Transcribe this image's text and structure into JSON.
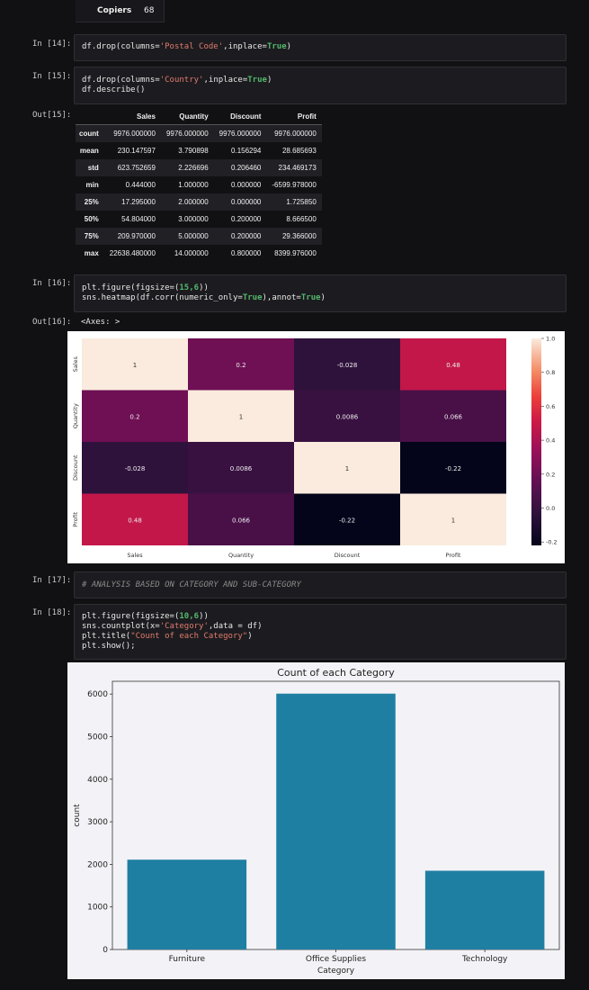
{
  "top_row": {
    "label": "Copiers",
    "value": "68"
  },
  "cells": {
    "c14": {
      "prompt": "In [14]:",
      "line1_a": "df.drop(columns=",
      "line1_s": "'Postal Code'",
      "line1_b": ",inplace=",
      "line1_k": "True",
      "line1_c": ")"
    },
    "c15": {
      "prompt": "In [15]:",
      "line1_a": "df.drop(columns=",
      "line1_s": "'Country'",
      "line1_b": ",inplace=",
      "line1_k": "True",
      "line1_c": ")",
      "line2": "df.describe()"
    },
    "out15": {
      "prompt": "Out[15]:"
    },
    "c16": {
      "prompt": "In [16]:",
      "line1_a": "plt.figure(figsize=(",
      "line1_n": "15,6",
      "line1_b": "))",
      "line2_a": "sns.heatmap(df.corr(numeric_only=",
      "line2_k1": "True",
      "line2_b": "),annot=",
      "line2_k2": "True",
      "line2_c": ")"
    },
    "out16": {
      "prompt": "Out[16]:",
      "text": "<Axes: >"
    },
    "c17": {
      "prompt": "In [17]:",
      "comment": "# ANALYSIS BASED ON CATEGORY AND SUB-CATEGORY"
    },
    "c18": {
      "prompt": "In [18]:",
      "l1_a": "plt.figure(figsize=(",
      "l1_n": "10,6",
      "l1_b": "))",
      "l2_a": "sns.countplot(x=",
      "l2_s": "'Category'",
      "l2_b": ",data = df)",
      "l3_a": "plt.title(",
      "l3_s": "\"Count of each Category\"",
      "l3_b": ")",
      "l4": "plt.show();"
    }
  },
  "describe": {
    "columns": [
      "Sales",
      "Quantity",
      "Discount",
      "Profit"
    ],
    "rows": [
      {
        "label": "count",
        "values": [
          "9976.000000",
          "9976.000000",
          "9976.000000",
          "9976.000000"
        ]
      },
      {
        "label": "mean",
        "values": [
          "230.147597",
          "3.790898",
          "0.156294",
          "28.685693"
        ]
      },
      {
        "label": "std",
        "values": [
          "623.752659",
          "2.226696",
          "0.206460",
          "234.469173"
        ]
      },
      {
        "label": "min",
        "values": [
          "0.444000",
          "1.000000",
          "0.000000",
          "-6599.978000"
        ]
      },
      {
        "label": "25%",
        "values": [
          "17.295000",
          "2.000000",
          "0.000000",
          "1.725850"
        ]
      },
      {
        "label": "50%",
        "values": [
          "54.804000",
          "3.000000",
          "0.200000",
          "8.666500"
        ]
      },
      {
        "label": "75%",
        "values": [
          "209.970000",
          "5.000000",
          "0.200000",
          "29.366000"
        ]
      },
      {
        "label": "max",
        "values": [
          "22638.480000",
          "14.000000",
          "0.800000",
          "8399.976000"
        ]
      }
    ]
  },
  "chart_data": [
    {
      "type": "heatmap",
      "rows": [
        "Sales",
        "Quantity",
        "Discount",
        "Profit"
      ],
      "columns": [
        "Sales",
        "Quantity",
        "Discount",
        "Profit"
      ],
      "values": [
        [
          1,
          0.2,
          -0.028,
          0.48
        ],
        [
          0.2,
          1,
          0.0086,
          0.066
        ],
        [
          -0.028,
          0.0086,
          1,
          -0.22
        ],
        [
          0.48,
          0.066,
          -0.22,
          1
        ]
      ],
      "labels": [
        [
          "1",
          "0.2",
          "-0.028",
          "0.48"
        ],
        [
          "0.2",
          "1",
          "0.0086",
          "0.066"
        ],
        [
          "-0.028",
          "0.0086",
          "1",
          "-0.22"
        ],
        [
          "0.48",
          "0.066",
          "-0.22",
          "1"
        ]
      ],
      "colorbar_ticks": [
        "1.0",
        "0.8",
        "0.6",
        "0.4",
        "0.2",
        "0.0",
        "-0.2"
      ],
      "vmin": -0.22,
      "vmax": 1.0
    },
    {
      "type": "bar",
      "title": "Count of each Category",
      "categories": [
        "Furniture",
        "Office Supplies",
        "Technology"
      ],
      "values": [
        2110,
        6010,
        1850
      ],
      "xlabel": "Category",
      "ylabel": "count",
      "ylim": [
        0,
        6300
      ],
      "yticks": [
        "0",
        "1000",
        "2000",
        "3000",
        "4000",
        "5000",
        "6000"
      ],
      "color": "#1f7fa3"
    }
  ]
}
